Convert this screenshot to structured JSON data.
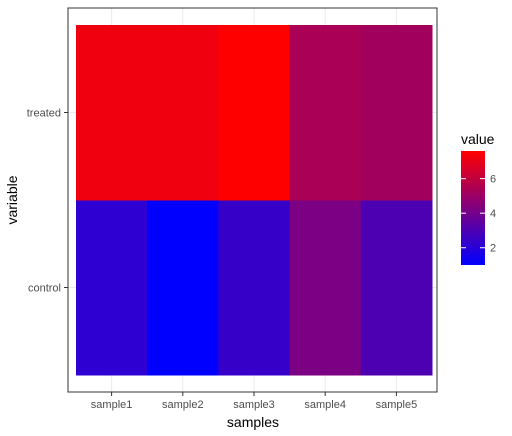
{
  "chart_data": {
    "type": "heatmap",
    "title": "",
    "xlabel": "samples",
    "ylabel": "variable",
    "x_categories": [
      "sample1",
      "sample2",
      "sample3",
      "sample4",
      "sample5"
    ],
    "y_categories": [
      "control",
      "treated"
    ],
    "values": {
      "treated": [
        7.2,
        7.2,
        7.6,
        5.4,
        5.2
      ],
      "control": [
        2.2,
        1.0,
        2.4,
        4.2,
        3.0
      ]
    },
    "legend": {
      "title": "value",
      "placement": "right",
      "ticks": [
        2,
        4,
        6
      ],
      "min": 1.0,
      "max": 7.6,
      "low_color": "#0000ff",
      "high_color": "#ff0000"
    },
    "grid": true,
    "theme": "bw"
  }
}
